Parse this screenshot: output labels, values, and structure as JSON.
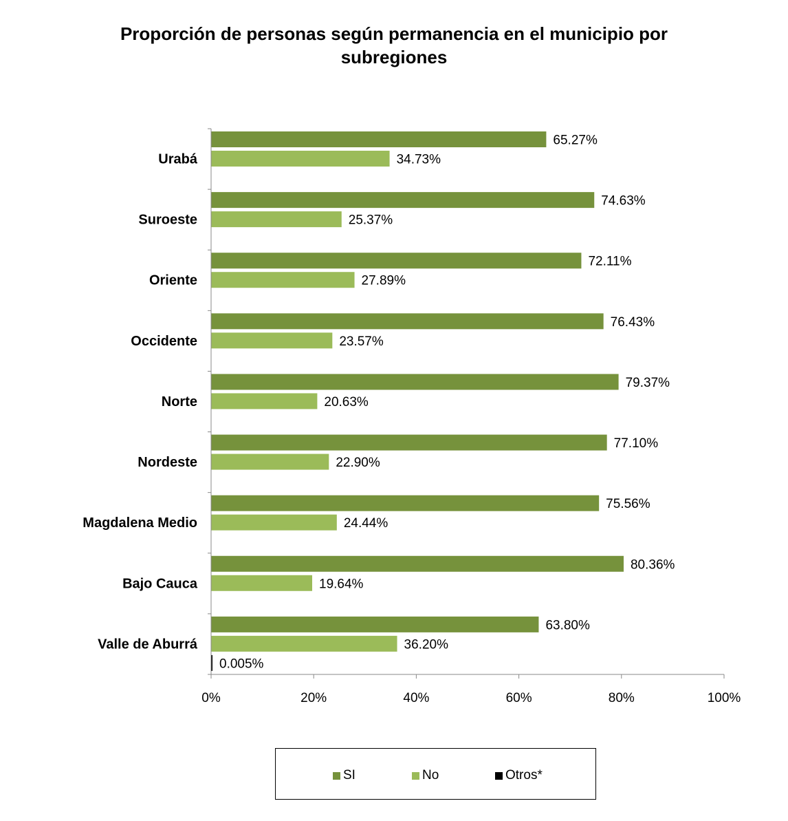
{
  "title": {
    "line1": "Proporción de personas según permanencia en el municipio por",
    "line2": "subregiones"
  },
  "chart_data": {
    "type": "bar",
    "orientation": "horizontal",
    "categories": [
      "Urabá",
      "Suroeste",
      "Oriente",
      "Occidente",
      "Norte",
      "Nordeste",
      "Magdalena Medio",
      "Bajo Cauca",
      "Valle de Aburrá"
    ],
    "series": [
      {
        "name": "SI",
        "color": "#76923c",
        "values": [
          65.27,
          74.63,
          72.11,
          76.43,
          79.37,
          77.1,
          75.56,
          80.36,
          63.8
        ],
        "labels": [
          "65.27%",
          "74.63%",
          "72.11%",
          "76.43%",
          "79.37%",
          "77.10%",
          "75.56%",
          "80.36%",
          "63.80%"
        ]
      },
      {
        "name": "No",
        "color": "#9bbb59",
        "values": [
          34.73,
          25.37,
          27.89,
          23.57,
          20.63,
          22.9,
          24.44,
          19.64,
          36.2
        ],
        "labels": [
          "34.73%",
          "25.37%",
          "27.89%",
          "23.57%",
          "20.63%",
          "22.90%",
          "24.44%",
          "19.64%",
          "36.20%"
        ]
      },
      {
        "name": "Otros*",
        "color": "#000000",
        "values": [
          null,
          null,
          null,
          null,
          null,
          null,
          null,
          null,
          0.005
        ],
        "labels": [
          null,
          null,
          null,
          null,
          null,
          null,
          null,
          null,
          "0.005%"
        ]
      }
    ],
    "xlim": [
      0,
      100
    ],
    "xticks": [
      "0%",
      "20%",
      "40%",
      "60%",
      "80%",
      "100%"
    ],
    "xtick_values": [
      0,
      20,
      40,
      60,
      80,
      100
    ],
    "grid": false,
    "legend_position": "bottom"
  },
  "legend": {
    "items": [
      {
        "label": "SI",
        "color": "#76923c"
      },
      {
        "label": "No",
        "color": "#9bbb59"
      },
      {
        "label": "Otros*",
        "color": "#000000"
      }
    ]
  }
}
